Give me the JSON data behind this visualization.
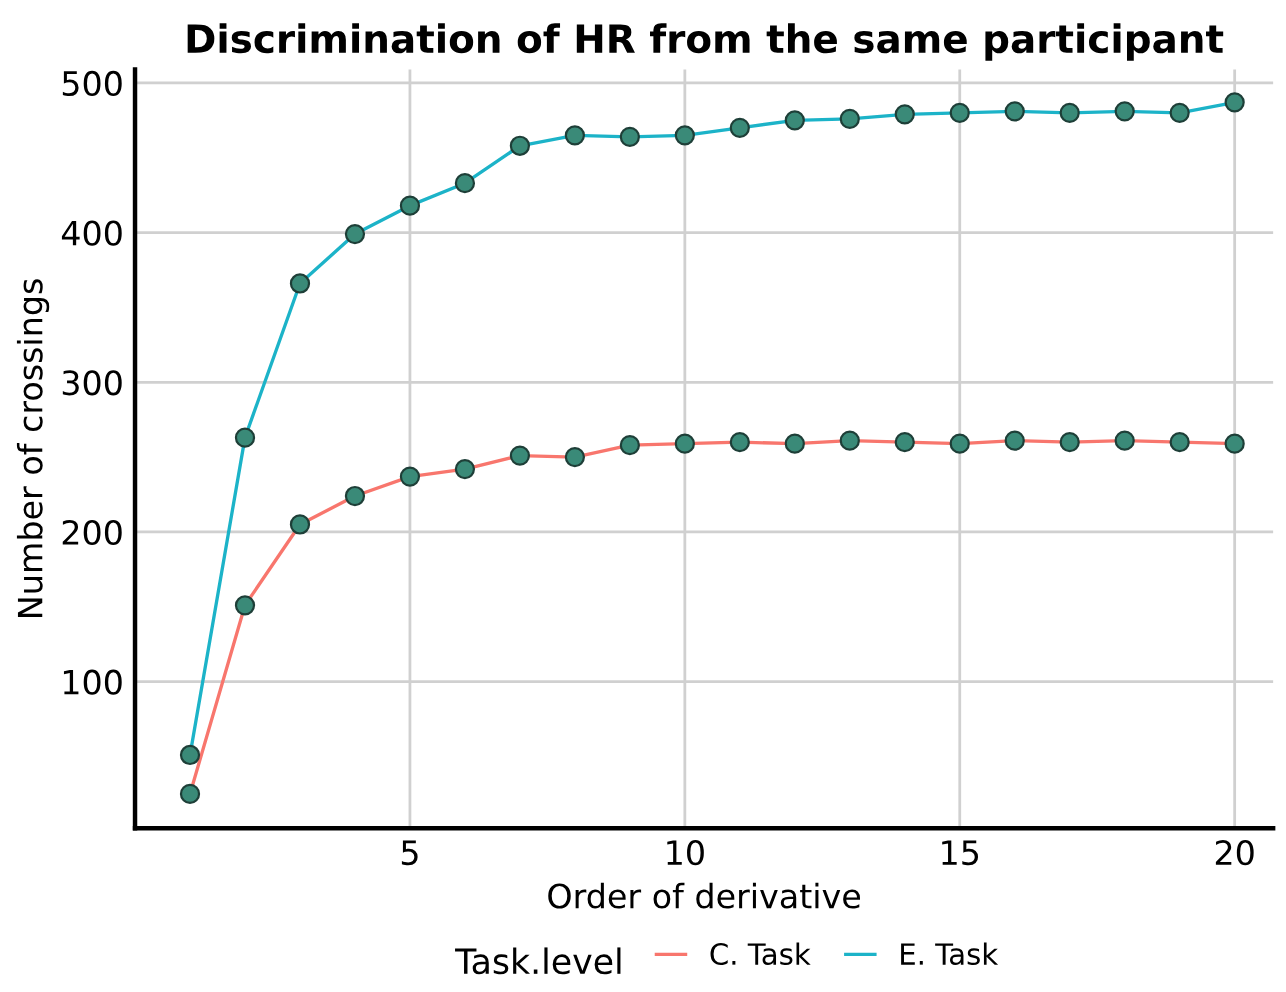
{
  "chart_data": {
    "type": "line",
    "title": "Discrimination of HR from the same participant",
    "xlabel": "Order of derivative",
    "ylabel": "Number of crossings",
    "legend_title": "Task.level",
    "x": [
      1,
      2,
      3,
      4,
      5,
      6,
      7,
      8,
      9,
      10,
      11,
      12,
      13,
      14,
      15,
      16,
      17,
      18,
      19,
      20
    ],
    "series": [
      {
        "name": "C. Task",
        "color": "#f8766d",
        "values": [
          25,
          151,
          205,
          224,
          237,
          242,
          251,
          250,
          258,
          259,
          260,
          259,
          261,
          260,
          259,
          261,
          260,
          261,
          260,
          259
        ]
      },
      {
        "name": "E. Task",
        "color": "#1cb3c8",
        "values": [
          51,
          263,
          366,
          399,
          418,
          433,
          458,
          465,
          464,
          465,
          470,
          475,
          476,
          479,
          480,
          481,
          480,
          481,
          480,
          487
        ]
      }
    ],
    "xlim": [
      0,
      20.7
    ],
    "ylim": [
      2,
      509
    ],
    "xticks": [
      5,
      10,
      15,
      20
    ],
    "yticks": [
      100,
      200,
      300,
      400,
      500
    ],
    "grid": true,
    "legend": "bottom",
    "marker": "circle",
    "line_style": "solid"
  }
}
